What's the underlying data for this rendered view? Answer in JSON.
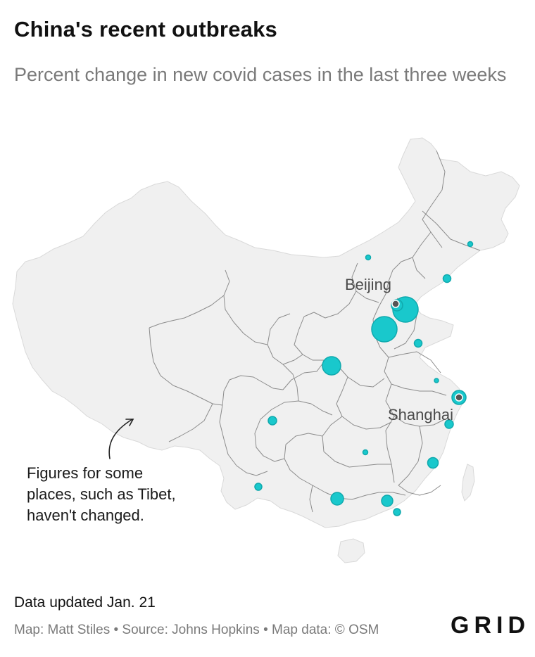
{
  "header": {
    "title": "China's recent outbreaks",
    "subtitle": "Percent change in new covid cases in the last three weeks"
  },
  "map": {
    "cities": [
      {
        "name": "Beijing"
      },
      {
        "name": "Shanghai"
      }
    ],
    "annotation": {
      "lines": [
        "Figures for some",
        "places, such as Tibet,",
        "haven't changed."
      ]
    },
    "colors": {
      "land": "#f0f0f0",
      "border": "#8a8a8a",
      "bubble": "#19c8cc",
      "bubble_stroke": "#0fa9ad",
      "city_dot": "#555555"
    }
  },
  "footer": {
    "updated": "Data updated Jan. 21",
    "credits": "Map: Matt Stiles • Source: Johns Hopkins • Map data: © OSM",
    "brand": "GRID"
  }
}
